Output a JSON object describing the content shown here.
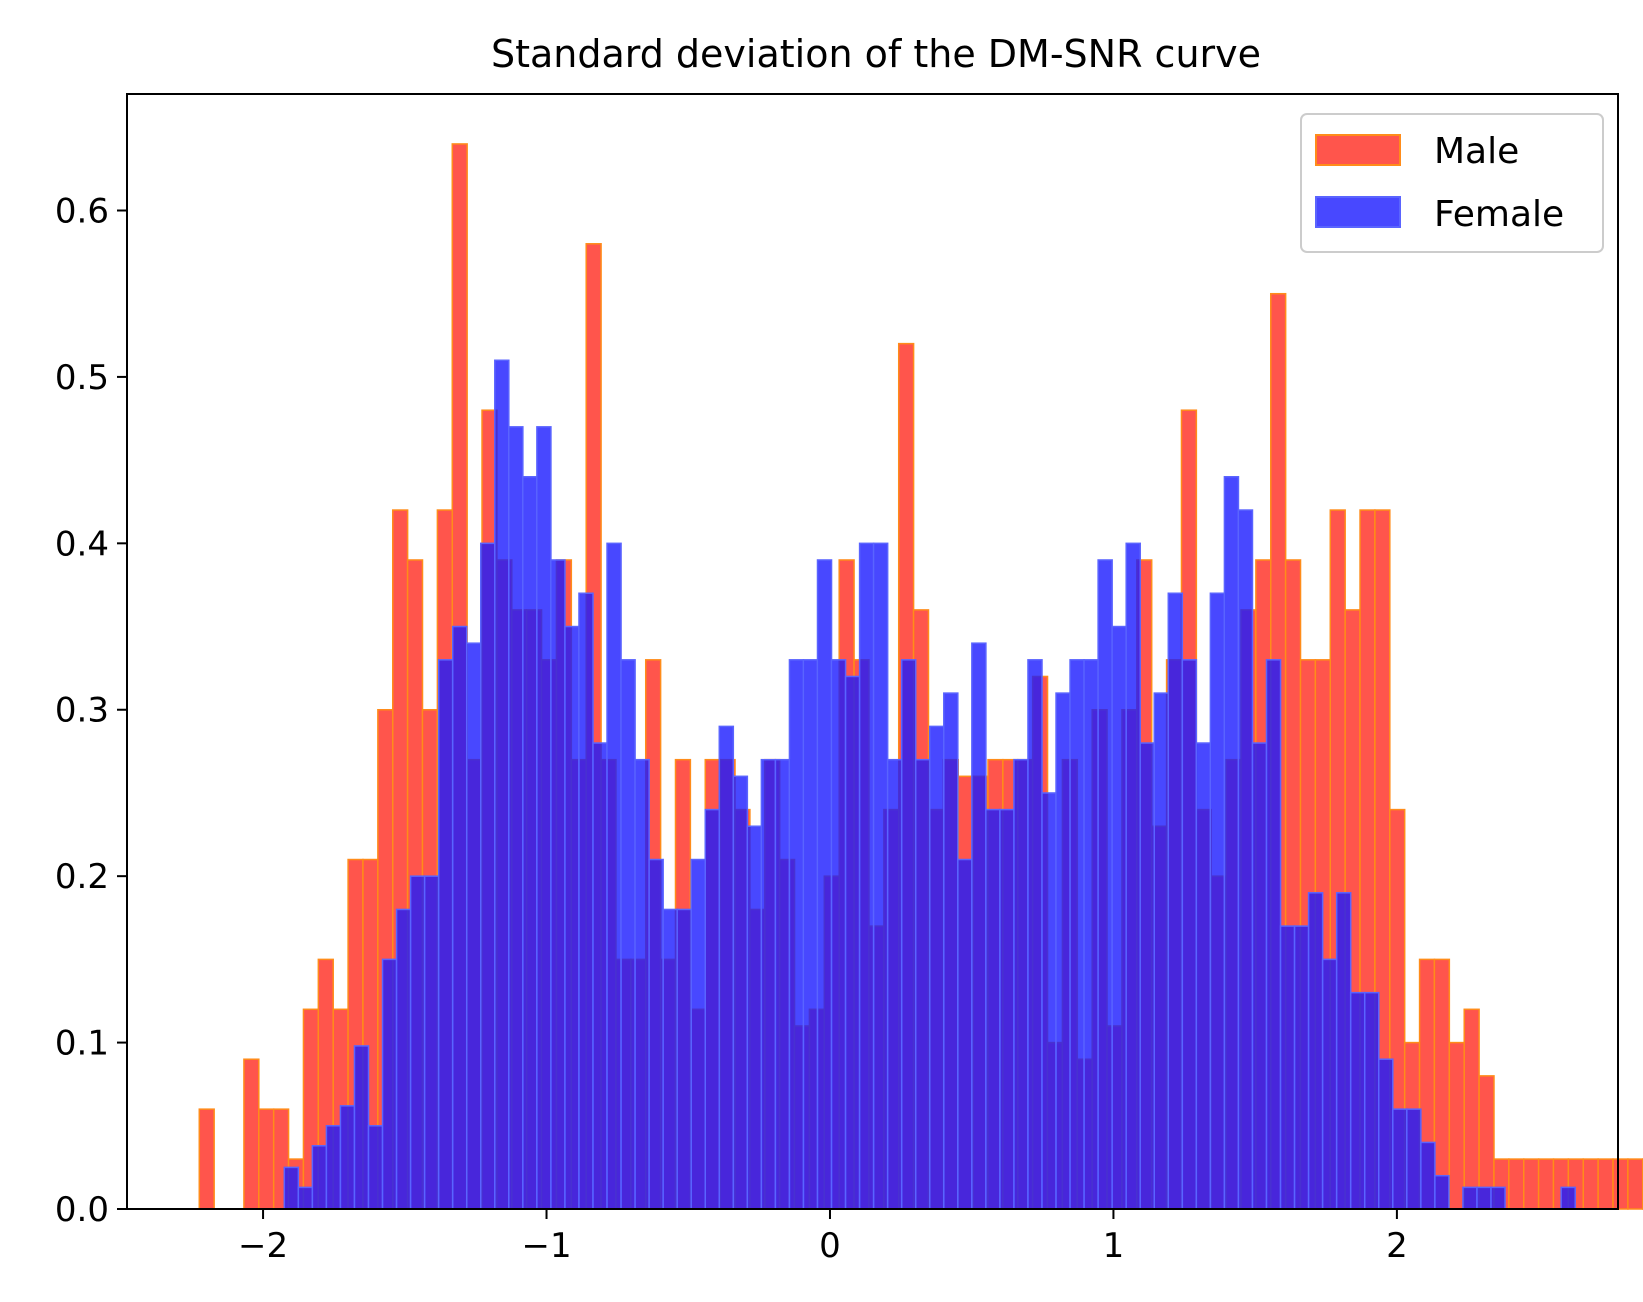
{
  "chart_data": {
    "type": "histogram",
    "title": "Standard deviation of the DM-SNR curve",
    "xlabel": "",
    "ylabel": "",
    "xlim": [
      -2.48,
      2.78
    ],
    "ylim": [
      0,
      0.67
    ],
    "xticks": [
      {
        "value": -2,
        "label": "−2"
      },
      {
        "value": -1,
        "label": "−1"
      },
      {
        "value": 0,
        "label": "0"
      },
      {
        "value": 1,
        "label": "1"
      },
      {
        "value": 2,
        "label": "2"
      }
    ],
    "yticks": [
      {
        "value": 0,
        "label": "0.0"
      },
      {
        "value": 0.1,
        "label": "0.1"
      },
      {
        "value": 0.2,
        "label": "0.2"
      },
      {
        "value": 0.3,
        "label": "0.3"
      },
      {
        "value": 0.4,
        "label": "0.4"
      },
      {
        "value": 0.5,
        "label": "0.5"
      },
      {
        "value": 0.6,
        "label": "0.6"
      }
    ],
    "grid": false,
    "legend": "top-right",
    "series": [
      {
        "name": "Male",
        "color": "#ff2a1f",
        "edgecolor": "#ff8c1a",
        "opacity": 0.8,
        "bin_start": -2.225,
        "bin_width": 0.0525,
        "values": [
          0.06,
          0,
          0,
          0.09,
          0.06,
          0.06,
          0.03,
          0.12,
          0.15,
          0.12,
          0.21,
          0.21,
          0.3,
          0.42,
          0.39,
          0.3,
          0.42,
          0.64,
          0.27,
          0.48,
          0.39,
          0.36,
          0.36,
          0.33,
          0.39,
          0.27,
          0.58,
          0.27,
          0.15,
          0.15,
          0.33,
          0.15,
          0.27,
          0.12,
          0.27,
          0.27,
          0.24,
          0.18,
          0.27,
          0.21,
          0.11,
          0.12,
          0.2,
          0.39,
          0.33,
          0.17,
          0.24,
          0.52,
          0.36,
          0.24,
          0.27,
          0.26,
          0.26,
          0.27,
          0.27,
          0.27,
          0.32,
          0.1,
          0.27,
          0.09,
          0.3,
          0.11,
          0.3,
          0.39,
          0.23,
          0.33,
          0.48,
          0.24,
          0.2,
          0.27,
          0.36,
          0.39,
          0.55,
          0.39,
          0.33,
          0.33,
          0.42,
          0.36,
          0.42,
          0.42,
          0.24,
          0.1,
          0.15,
          0.15,
          0.1,
          0.12,
          0.08,
          0.03,
          0.03,
          0.03,
          0.03,
          0.03,
          0.03,
          0.03,
          0.03,
          0.03,
          0.03,
          0.03,
          0.03
        ]
      },
      {
        "name": "Female",
        "color": "#1a1aff",
        "edgecolor": "#5a64ff",
        "opacity": 0.8,
        "bin_start": -1.925,
        "bin_width": 0.0495,
        "values": [
          0.025,
          0.013,
          0.038,
          0.05,
          0.062,
          0.098,
          0.05,
          0.15,
          0.18,
          0.2,
          0.2,
          0.33,
          0.35,
          0.34,
          0.4,
          0.51,
          0.47,
          0.44,
          0.47,
          0.39,
          0.35,
          0.37,
          0.28,
          0.4,
          0.33,
          0.27,
          0.21,
          0.18,
          0.18,
          0.21,
          0.24,
          0.29,
          0.26,
          0.23,
          0.27,
          0.27,
          0.33,
          0.33,
          0.39,
          0.33,
          0.32,
          0.4,
          0.4,
          0.27,
          0.33,
          0.27,
          0.29,
          0.31,
          0.21,
          0.34,
          0.24,
          0.24,
          0.27,
          0.33,
          0.25,
          0.31,
          0.33,
          0.33,
          0.39,
          0.35,
          0.4,
          0.28,
          0.31,
          0.37,
          0.33,
          0.28,
          0.37,
          0.44,
          0.42,
          0.28,
          0.33,
          0.17,
          0.17,
          0.19,
          0.15,
          0.19,
          0.13,
          0.13,
          0.09,
          0.06,
          0.06,
          0.04,
          0.02,
          0.0,
          0.013,
          0.013,
          0.013,
          0.0,
          0.0,
          0.0,
          0.0,
          0.013
        ]
      }
    ]
  }
}
